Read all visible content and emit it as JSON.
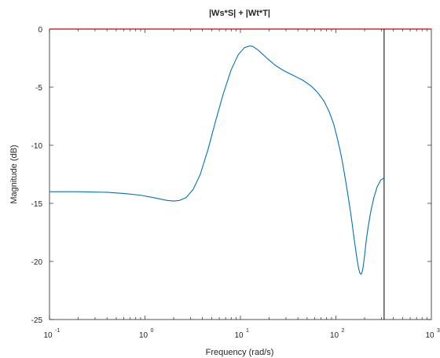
{
  "chart_data": {
    "type": "line",
    "title": "|Ws*S| + |Wt*T|",
    "xlabel": "Frequency  (rad/s)",
    "ylabel": "Magnitude (dB)",
    "xscale": "log",
    "xlim": [
      0.1,
      1000
    ],
    "ylim": [
      -25,
      0
    ],
    "x_ticks": [
      {
        "base": "10",
        "exp": "-1",
        "value": 0.1
      },
      {
        "base": "10",
        "exp": "0",
        "value": 1
      },
      {
        "base": "10",
        "exp": "1",
        "value": 10
      },
      {
        "base": "10",
        "exp": "2",
        "value": 100
      },
      {
        "base": "10",
        "exp": "3",
        "value": 1000
      }
    ],
    "y_ticks": [
      {
        "label": "0",
        "value": 0
      },
      {
        "label": "-5",
        "value": -5
      },
      {
        "label": "-10",
        "value": -10
      },
      {
        "label": "-15",
        "value": -15
      },
      {
        "label": "-20",
        "value": -20
      },
      {
        "label": "-25",
        "value": -25
      }
    ],
    "grid": false,
    "series": [
      {
        "color": "#0072bd",
        "x": [
          0.1,
          0.2,
          0.4,
          0.6,
          0.9,
          1.3,
          1.7,
          2.0,
          2.3,
          2.7,
          3.2,
          3.8,
          4.6,
          5.5,
          6.6,
          8.0,
          9.5,
          11.0,
          12.5,
          13.5,
          15.0,
          17.0,
          19.5,
          23.0,
          28.0,
          35.0,
          45.0,
          55.0,
          65.0,
          75.0,
          85.0,
          95.0,
          105.0,
          115.0,
          125.0,
          135.0,
          145.0,
          155.0,
          165.0,
          172.0,
          178.0,
          184.0,
          190.0,
          195.0,
          201.0,
          208.0,
          218.0,
          232.0,
          250.0,
          270.0,
          295.0,
          320.0
        ],
        "y": [
          -14.0,
          -14.0,
          -14.05,
          -14.15,
          -14.3,
          -14.55,
          -14.75,
          -14.8,
          -14.75,
          -14.5,
          -13.8,
          -12.5,
          -10.3,
          -7.9,
          -5.6,
          -3.5,
          -2.2,
          -1.6,
          -1.45,
          -1.5,
          -1.75,
          -2.15,
          -2.6,
          -3.1,
          -3.55,
          -3.95,
          -4.4,
          -4.9,
          -5.5,
          -6.2,
          -7.1,
          -8.2,
          -9.6,
          -11.1,
          -12.8,
          -14.5,
          -16.2,
          -18.0,
          -19.6,
          -20.5,
          -21.0,
          -21.1,
          -20.8,
          -20.2,
          -19.3,
          -18.2,
          -17.0,
          -15.7,
          -14.5,
          -13.6,
          -13.0,
          -12.8
        ]
      }
    ],
    "reference_lines": [
      {
        "orientation": "horizontal",
        "y": 0,
        "color": "#d00000"
      },
      {
        "orientation": "vertical",
        "x": 320,
        "color": "#000000"
      }
    ]
  }
}
